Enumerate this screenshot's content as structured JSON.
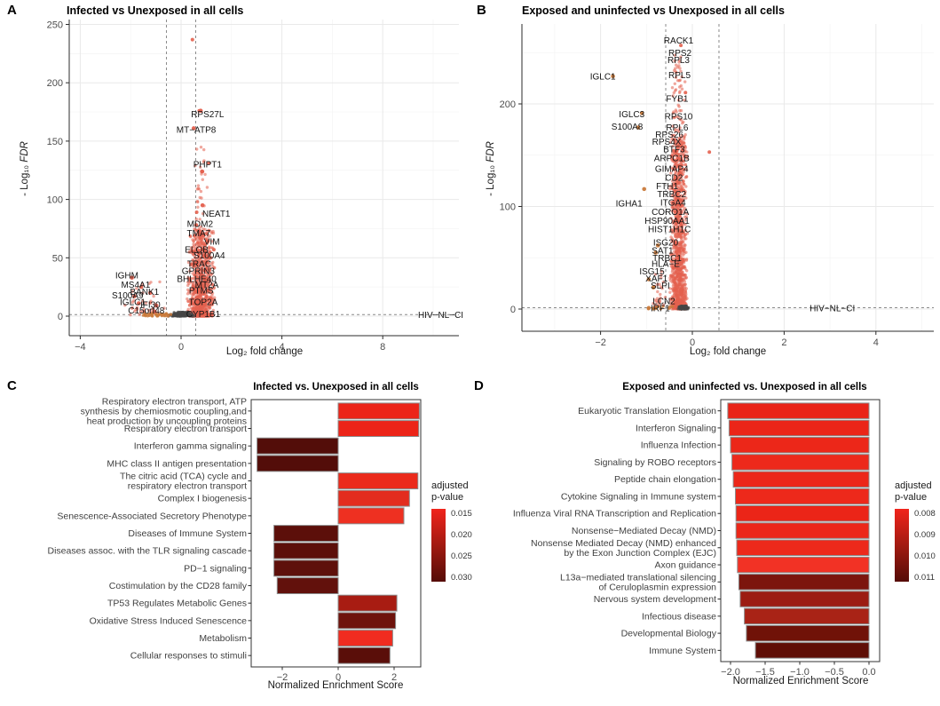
{
  "chart_data": [
    {
      "id": "A",
      "type": "scatter",
      "letter": "A",
      "title": "Infected vs Unexposed in all cells",
      "xlabel": "Log₂ fold change",
      "ylabel_prefix": "- Log₁₀ ",
      "ylabel_italic": "FDR",
      "xlim": [
        -4.4,
        11.0
      ],
      "ylim": [
        0,
        254
      ],
      "xticks": [
        [
          -4,
          "−4"
        ],
        [
          0,
          "0"
        ],
        [
          4,
          "4"
        ],
        [
          8,
          "8"
        ]
      ],
      "yticks": [
        [
          0,
          "0"
        ],
        [
          50,
          "50"
        ],
        [
          100,
          "100"
        ],
        [
          150,
          "150"
        ],
        [
          200,
          "200"
        ],
        [
          250,
          "250"
        ]
      ],
      "vlines": [
        -0.58,
        0.58
      ],
      "hline": 1.3,
      "colors": {
        "sig": "#e4604e",
        "ns": "#454545",
        "alt": "#c97a3b"
      },
      "labeled_genes": [
        {
          "label": "RPS27L",
          "x": 1.05,
          "y": 173,
          "dot": [
            0.78,
            176
          ]
        },
        {
          "label": "MT−ATP8",
          "x": 0.6,
          "y": 160,
          "dot": [
            0.5,
            161
          ]
        },
        {
          "label": "PHPT1",
          "x": 1.05,
          "y": 130,
          "dot": [
            0.83,
            124
          ]
        },
        {
          "label": "NEAT1",
          "x": 1.4,
          "y": 88,
          "dot": [
            0.85,
            95
          ]
        },
        {
          "label": "MDM2",
          "x": 0.75,
          "y": 79,
          "dot": [
            0.6,
            78
          ]
        },
        {
          "label": "TMA7",
          "x": 0.7,
          "y": 71,
          "dot": [
            0.88,
            69
          ]
        },
        {
          "label": "VIM",
          "x": 1.22,
          "y": 64,
          "dot": [
            1.05,
            64
          ]
        },
        {
          "label": "ELOB",
          "x": 0.62,
          "y": 57,
          "dot": [
            0.9,
            57
          ]
        },
        {
          "label": "S100A4",
          "x": 1.12,
          "y": 52,
          "dot": [
            0.92,
            52
          ]
        },
        {
          "label": "TRAC",
          "x": 0.72,
          "y": 45,
          "dot": [
            0.55,
            45
          ]
        },
        {
          "label": "GPRIN3",
          "x": 0.68,
          "y": 39,
          "dot": [
            0.95,
            39
          ]
        },
        {
          "label": "BHLHE40",
          "x": 0.62,
          "y": 32,
          "dot": [
            1.0,
            32
          ]
        },
        {
          "label": "MT2A",
          "x": 1.02,
          "y": 27,
          "dot": [
            0.8,
            27
          ]
        },
        {
          "label": "PTMS",
          "x": 0.8,
          "y": 22,
          "dot": [
            1.05,
            22
          ]
        },
        {
          "label": "TOP2A",
          "x": 0.88,
          "y": 12,
          "dot": [
            0.68,
            12
          ]
        },
        {
          "label": "CYP1B1",
          "x": 0.88,
          "y": 2,
          "dot": [
            0.55,
            3
          ]
        },
        {
          "label": "IGHM",
          "x": -2.15,
          "y": 35,
          "dot": [
            -1.95,
            33
          ]
        },
        {
          "label": "MS4A1",
          "x": -1.8,
          "y": 27,
          "dot": [
            -1.58,
            25
          ]
        },
        {
          "label": "BANK1",
          "x": -1.45,
          "y": 21,
          "dot": [
            -1.22,
            20
          ]
        },
        {
          "label": "S100A9",
          "x": -2.12,
          "y": 18,
          "dot": [
            -1.85,
            17
          ]
        },
        {
          "label": "IGLC1",
          "x": -1.92,
          "y": 12,
          "dot": [
            -1.68,
            11
          ]
        },
        {
          "label": "IFI30",
          "x": -1.22,
          "y": 10,
          "dot": [
            -0.98,
            9
          ]
        },
        {
          "label": "C15orf48",
          "x": -1.38,
          "y": 5,
          "dot": [
            -1.05,
            4
          ]
        },
        {
          "label": "HIV−NL−CI",
          "x": 10.3,
          "y": 1
        }
      ],
      "extra_points": [
        [
          0.45,
          237
        ],
        [
          0.72,
          176
        ],
        [
          1.1,
          131
        ],
        [
          0.85,
          124
        ],
        [
          0.62,
          89
        ],
        [
          0.95,
          61
        ],
        [
          1.3,
          57
        ],
        [
          1.15,
          55
        ],
        [
          0.5,
          55
        ],
        [
          0.75,
          67
        ]
      ],
      "clouds": [
        {
          "x": [
            0.22,
            1.35
          ],
          "y": [
            0,
            75
          ],
          "n": 950,
          "c": "sig",
          "pow": 2.0
        },
        {
          "x": [
            0.35,
            1.15
          ],
          "y": [
            75,
            145
          ],
          "n": 26,
          "c": "sig",
          "pow": 1
        },
        {
          "x": [
            -2.4,
            -0.62
          ],
          "y": [
            1,
            30
          ],
          "n": 40,
          "c": "sig",
          "pow": 1.6
        },
        {
          "x": [
            -0.52,
            0.55
          ],
          "y": [
            0,
            3.5
          ],
          "n": 130,
          "c": "ns",
          "pow": 1.5
        },
        {
          "x": [
            -1.6,
            -0.35
          ],
          "y": [
            0,
            3
          ],
          "n": 32,
          "c": "alt",
          "pow": 1.5
        }
      ]
    },
    {
      "id": "B",
      "type": "scatter",
      "letter": "B",
      "title": "Exposed and uninfected vs Unexposed in all cells",
      "xlabel": "Log₂ fold change",
      "ylabel_prefix": "- Log₁₀ ",
      "ylabel_italic": "FDR",
      "xlim": [
        -3.7,
        5.3
      ],
      "ylim": [
        0,
        278
      ],
      "xticks": [
        [
          -2,
          "−2"
        ],
        [
          0,
          "0"
        ],
        [
          2,
          "2"
        ],
        [
          4,
          "4"
        ]
      ],
      "yticks": [
        [
          0,
          "0"
        ],
        [
          100,
          "100"
        ],
        [
          200,
          "200"
        ]
      ],
      "vlines": [
        -0.58,
        0.58
      ],
      "hline": 1.3,
      "colors": {
        "sig": "#e4604e",
        "ns": "#454545",
        "alt": "#c97a3b"
      },
      "labeled_genes": [
        {
          "label": "RACK1",
          "x": -0.3,
          "y": 262
        },
        {
          "label": "RPS2",
          "x": -0.27,
          "y": 250
        },
        {
          "label": "RPL3",
          "x": -0.3,
          "y": 243
        },
        {
          "label": "RPL5",
          "x": -0.28,
          "y": 228
        },
        {
          "label": "IGLC1",
          "x": -1.95,
          "y": 227,
          "dot": [
            -1.73,
            227
          ],
          "alt": true
        },
        {
          "label": "FYB1",
          "x": -0.33,
          "y": 205
        },
        {
          "label": "IGLC3",
          "x": -1.32,
          "y": 190,
          "dot": [
            -1.1,
            191
          ],
          "alt": true
        },
        {
          "label": "RPS10",
          "x": -0.3,
          "y": 188
        },
        {
          "label": "S100A8",
          "x": -1.42,
          "y": 178,
          "dot": [
            -1.18,
            177
          ],
          "alt": true
        },
        {
          "label": "RPL6",
          "x": -0.33,
          "y": 177
        },
        {
          "label": "RPS26",
          "x": -0.5,
          "y": 170
        },
        {
          "label": "RPS4X",
          "x": -0.56,
          "y": 163
        },
        {
          "label": "BTF3",
          "x": -0.4,
          "y": 156
        },
        {
          "label": "ARPC1B",
          "x": -0.45,
          "y": 147
        },
        {
          "label": "GIMAP4",
          "x": -0.45,
          "y": 137
        },
        {
          "label": "CD2",
          "x": -0.4,
          "y": 128
        },
        {
          "label": "FTH1",
          "x": -0.55,
          "y": 120,
          "dot": [
            -1.05,
            117
          ],
          "alt": true
        },
        {
          "label": "TRBC2",
          "x": -0.45,
          "y": 112
        },
        {
          "label": "IGHA1",
          "x": -1.38,
          "y": 103
        },
        {
          "label": "ITGA4",
          "x": -0.42,
          "y": 104
        },
        {
          "label": "CORO1A",
          "x": -0.48,
          "y": 95
        },
        {
          "label": "HSP90AA1",
          "x": -0.55,
          "y": 86
        },
        {
          "label": "HIST1H1C",
          "x": -0.5,
          "y": 78
        },
        {
          "label": "ISG20",
          "x": -0.58,
          "y": 65,
          "dot": [
            -0.75,
            62
          ],
          "alt": true
        },
        {
          "label": "SAT1",
          "x": -0.65,
          "y": 57,
          "dot": [
            -0.8,
            55
          ],
          "alt": true
        },
        {
          "label": "TRBC1",
          "x": -0.55,
          "y": 50
        },
        {
          "label": "HLA−E",
          "x": -0.58,
          "y": 44
        },
        {
          "label": "ISG15",
          "x": -0.88,
          "y": 37
        },
        {
          "label": "XAF1",
          "x": -0.78,
          "y": 30,
          "dot": [
            -0.95,
            29
          ],
          "alt": true
        },
        {
          "label": "SLPI",
          "x": -0.7,
          "y": 23,
          "dot": [
            -0.85,
            21
          ],
          "alt": true
        },
        {
          "label": "LCN2",
          "x": -0.62,
          "y": 8
        },
        {
          "label": "IRF1",
          "x": -0.7,
          "y": 1,
          "dot": [
            -0.95,
            1
          ],
          "alt": true
        },
        {
          "label": "HIV−NL−CI",
          "x": 3.05,
          "y": 1
        }
      ],
      "extra_points": [
        [
          0.37,
          153
        ],
        [
          -0.15,
          211
        ],
        [
          -0.25,
          257
        ]
      ],
      "clouds": [
        {
          "x": [
            -0.5,
            -0.1
          ],
          "y": [
            0,
            170
          ],
          "n": 1150,
          "c": "sig",
          "pow": 1.6
        },
        {
          "x": [
            -0.48,
            -0.15
          ],
          "y": [
            170,
            252
          ],
          "n": 55,
          "c": "sig",
          "pow": 1
        },
        {
          "x": [
            -0.32,
            -0.06
          ],
          "y": [
            0,
            3
          ],
          "n": 90,
          "c": "ns",
          "pow": 1.5
        },
        {
          "x": [
            -1.0,
            -0.4
          ],
          "y": [
            0,
            3
          ],
          "n": 14,
          "c": "alt",
          "pow": 1.5
        },
        {
          "x": [
            -0.9,
            -0.55
          ],
          "y": [
            3,
            40
          ],
          "n": 25,
          "c": "sig",
          "pow": 1.5
        }
      ]
    },
    {
      "id": "C",
      "type": "bar",
      "letter": "C",
      "title": "Infected vs. Unexposed in all cells",
      "xlabel": "Normalized Enrichment Score",
      "xticks": [
        [
          -2,
          "−2"
        ],
        [
          0,
          "0"
        ],
        [
          2,
          "2"
        ]
      ],
      "xlim": [
        -3.1,
        2.95
      ],
      "categories": [
        [
          "Respiratory electron transport, ATP",
          "synthesis by chemiosmotic coupling,and",
          "heat production by uncoupling proteins"
        ],
        [
          "Respiratory electron transport"
        ],
        [
          "Interferon gamma signaling"
        ],
        [
          "MHC class II antigen presentation"
        ],
        [
          "The citric acid (TCA) cycle and",
          "respiratory electron transport"
        ],
        [
          "Complex I biogenesis"
        ],
        [
          "Senescence-Associated Secretory Phenotype"
        ],
        [
          "Diseases of Immune System"
        ],
        [
          "Diseases assoc. with the TLR signaling cascade"
        ],
        [
          "PD−1 signaling"
        ],
        [
          "Costimulation by the CD28 family"
        ],
        [
          "TP53 Regulates Metabolic Genes"
        ],
        [
          "Oxidative Stress Induced Senescence"
        ],
        [
          "Metabolism"
        ],
        [
          "Cellular responses to stimuli"
        ]
      ],
      "values": [
        2.9,
        2.88,
        -2.9,
        -2.9,
        2.85,
        2.55,
        2.35,
        -2.3,
        -2.3,
        -2.3,
        -2.18,
        2.1,
        2.05,
        1.95,
        1.85
      ],
      "bar_colors": [
        "#ec2418",
        "#ec2418",
        "#530d09",
        "#530d09",
        "#eb2a1b",
        "#e32c1e",
        "#ee3021",
        "#5c0f0a",
        "#5c0f0a",
        "#5e100b",
        "#62110c",
        "#a81c12",
        "#6e130c",
        "#f02c20",
        "#5a0e09"
      ],
      "legend": {
        "title_line1": "adjusted",
        "title_line2": "p-value",
        "ticks": [
          "0.015",
          "0.020",
          "0.025",
          "0.030"
        ],
        "top": "#f1241c",
        "mid": "#9a1910",
        "bottom": "#550c07"
      }
    },
    {
      "id": "D",
      "type": "bar",
      "letter": "D",
      "title": "Exposed and uninfected vs. Unexposed in all cells",
      "xlabel": "Normalized Enrichment Score",
      "xticks": [
        [
          -2,
          "−2.0"
        ],
        [
          -1.5,
          "−1.5"
        ],
        [
          -1,
          "−1.0"
        ],
        [
          -0.5,
          "−0.5"
        ],
        [
          0,
          "0.0"
        ]
      ],
      "xlim": [
        -2.14,
        0.15
      ],
      "categories": [
        [
          "Eukaryotic Translation Elongation"
        ],
        [
          "Interferon Signaling"
        ],
        [
          "Influenza Infection"
        ],
        [
          "Signaling by ROBO receptors"
        ],
        [
          "Peptide chain elongation"
        ],
        [
          "Cytokine Signaling in Immune system"
        ],
        [
          "Influenza Viral RNA Transcription and Replication"
        ],
        [
          "Nonsense−Mediated Decay (NMD)"
        ],
        [
          "Nonsense Mediated Decay (NMD) enhanced",
          "by the Exon Junction Complex (EJC)"
        ],
        [
          "Axon guidance"
        ],
        [
          "L13a−mediated translational silencing",
          "of Ceruloplasmin expression"
        ],
        [
          "Nervous system development"
        ],
        [
          "Infectious disease"
        ],
        [
          "Developmental Biology"
        ],
        [
          "Immune System"
        ]
      ],
      "values": [
        -2.04,
        -2.02,
        -2.0,
        -1.98,
        -1.96,
        -1.93,
        -1.92,
        -1.92,
        -1.91,
        -1.9,
        -1.88,
        -1.86,
        -1.8,
        -1.77,
        -1.64
      ],
      "bar_colors": [
        "#e92317",
        "#eb2518",
        "#ec2719",
        "#ed291b",
        "#ec2719",
        "#ed291b",
        "#eb2518",
        "#ec2719",
        "#ed291b",
        "#f23225",
        "#7c150d",
        "#9c1c12",
        "#a92316",
        "#701208",
        "#5f0e06"
      ],
      "legend": {
        "title_line1": "adjusted",
        "title_line2": "p-value",
        "ticks": [
          "0.008",
          "0.009",
          "0.010",
          "0.011"
        ],
        "top": "#f1241c",
        "mid": "#9a1910",
        "bottom": "#550c07"
      }
    }
  ]
}
